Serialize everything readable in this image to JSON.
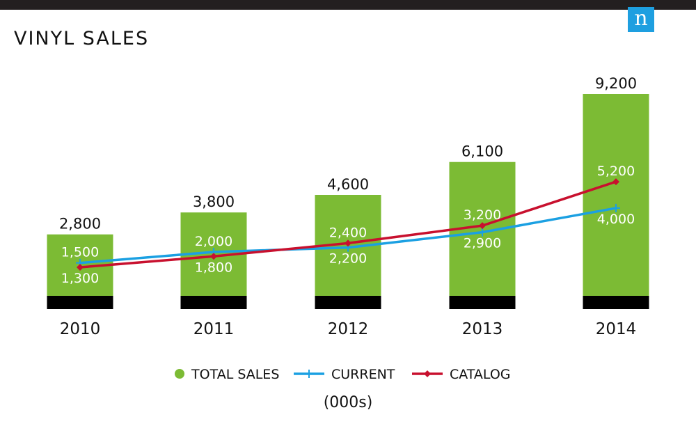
{
  "logo": {
    "letter": "n",
    "color": "#1e9fe0"
  },
  "title": "VINYL SALES",
  "unit_note": "(000s)",
  "colors": {
    "total": "#7cbb34",
    "current": "#1ba0e2",
    "catalog": "#c8102e",
    "base": "#000000"
  },
  "chart_data": {
    "type": "bar",
    "title": "VINYL SALES",
    "categories": [
      "2010",
      "2011",
      "2012",
      "2013",
      "2014"
    ],
    "ylim": [
      0,
      9200
    ],
    "grid": false,
    "legend_position": "bottom",
    "series": [
      {
        "name": "TOTAL SALES",
        "type": "bar",
        "values": [
          2800,
          3800,
          4600,
          6100,
          9200
        ],
        "labels": [
          "2,800",
          "3,800",
          "4,600",
          "6,100",
          "9,200"
        ]
      },
      {
        "name": "CURRENT",
        "type": "line",
        "values": [
          1500,
          2000,
          2200,
          2900,
          4000
        ],
        "labels": [
          "1,500",
          "2,000",
          "2,200",
          "2,900",
          "4,000"
        ]
      },
      {
        "name": "CATALOG",
        "type": "line",
        "values": [
          1300,
          1800,
          2400,
          3200,
          5200
        ],
        "labels": [
          "1,300",
          "1,800",
          "2,400",
          "3,200",
          "5,200"
        ]
      }
    ]
  }
}
